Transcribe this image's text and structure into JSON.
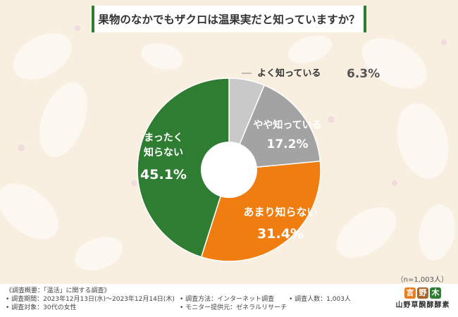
{
  "title": "果物のなかでもザクロは温果実だと知っていますか？",
  "sample_note": "（n=1,003人）",
  "colors": {
    "gray_light": "#c9c9c9",
    "gray_mid": "#a3a3a3",
    "orange": "#ef7d0f",
    "green": "#2e7d32",
    "background": "#f8efe1"
  },
  "chart_data": {
    "type": "pie",
    "title": "果物のなかでもザクロは温果実だと知っていますか？",
    "slices": [
      {
        "label": "よく知っている",
        "value": 6.3,
        "value_text": "6.3%",
        "color": "#c9c9c9"
      },
      {
        "label": "やや知っている",
        "value": 17.2,
        "value_text": "17.2%",
        "color": "#a3a3a3"
      },
      {
        "label": "あまり知らない",
        "value": 31.4,
        "value_text": "31.4%",
        "color": "#ef7d0f"
      },
      {
        "label": "まったく知らない",
        "value": 45.1,
        "value_text": "45.1%",
        "color": "#2e7d32"
      }
    ],
    "donut": true,
    "start": "top",
    "direction": "clockwise"
  },
  "footer": {
    "summary": "《調査概要：「温活」に関する調査》",
    "period": "• 調査期間：2023年12月13日(水)～2023年12月14日(木)",
    "target": "• 調査対象：30代の女性",
    "method": "• 調査方法：インターネット調査",
    "provider": "• モニター提供元：ゼネラルリサーチ",
    "count": "• 調査人数：1,003人"
  },
  "logo": {
    "chars": [
      "言",
      "野",
      "木"
    ],
    "name": "山野草醗酵酵素"
  }
}
